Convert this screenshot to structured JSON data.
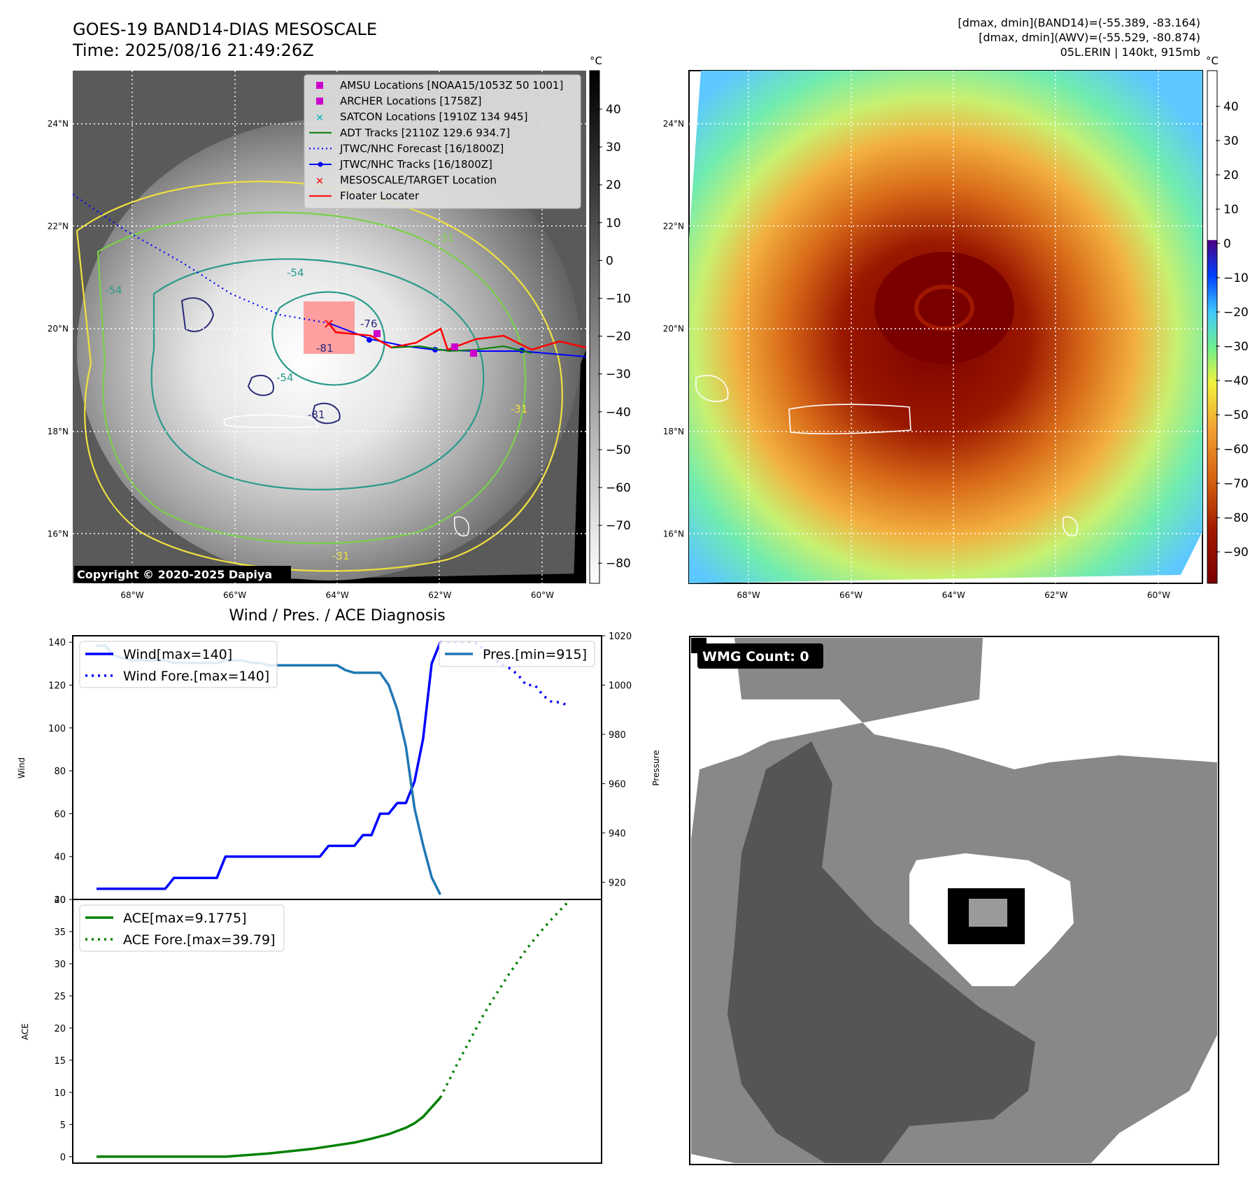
{
  "header": {
    "title_line1": "GOES-19 BAND14-DIAS MESOSCALE",
    "title_line2": "Time: 2025/08/16 21:49:26Z",
    "info_line1": "[dmax, dmin](BAND14)=(-55.389, -83.164)",
    "info_line2": "[dmax, dmin](AWV)=(-55.529, -80.874)",
    "info_line3": "05L.ERIN | 140kt, 915mb"
  },
  "map_left": {
    "copyright": "Copyright © 2020-2025 Dapiya",
    "legend": [
      {
        "label": "AMSU Locations [NOAA15/1053Z 50 1001]",
        "marker": "square",
        "color": "#cc00cc"
      },
      {
        "label": "ARCHER Locations [1758Z]",
        "marker": "square",
        "color": "#cc00cc"
      },
      {
        "label": "SATCON Locations [1910Z 134 945]",
        "marker": "x",
        "color": "#00bbbb"
      },
      {
        "label": "ADT Tracks [2110Z 129.6 934.7]",
        "marker": "line",
        "color": "#008000"
      },
      {
        "label": "JTWC/NHC Forecast [16/1800Z]",
        "marker": "dotted",
        "color": "#0000ff"
      },
      {
        "label": "JTWC/NHC Tracks [16/1800Z]",
        "marker": "line-dot",
        "color": "#0000ff"
      },
      {
        "label": "MESOSCALE/TARGET Location",
        "marker": "x",
        "color": "#ff0000"
      },
      {
        "label": "Floater Locater",
        "marker": "line",
        "color": "#ff0000"
      }
    ],
    "contour_labels": [
      "-54",
      "-54",
      "-31",
      "-31",
      "-76",
      "-81",
      "-81",
      "-54",
      "-31"
    ],
    "colorbar_unit": "°C",
    "colorbar_ticks": [
      "40",
      "30",
      "20",
      "10",
      "0",
      "−10",
      "−20",
      "−30",
      "−40",
      "−50",
      "−60",
      "−70",
      "−80"
    ],
    "lat_ticks": [
      "24°N",
      "22°N",
      "20°N",
      "18°N",
      "16°N"
    ],
    "lon_ticks": [
      "68°W",
      "66°W",
      "64°W",
      "62°W",
      "60°W"
    ]
  },
  "map_right": {
    "colorbar_unit": "°C",
    "colorbar_ticks": [
      "40",
      "30",
      "20",
      "10",
      "0",
      "−10",
      "−20",
      "−30",
      "−40",
      "−50",
      "−60",
      "−70",
      "−80",
      "−90"
    ],
    "lat_ticks": [
      "24°N",
      "22°N",
      "20°N",
      "18°N",
      "16°N"
    ],
    "lon_ticks": [
      "68°W",
      "66°W",
      "64°W",
      "62°W",
      "60°W"
    ]
  },
  "wmg": {
    "label": "WMG Count: 0"
  },
  "colors": {
    "wind": "#0000ff",
    "pressure": "#1f77b4",
    "ace": "#008000",
    "copyright_bg": "#000000"
  },
  "chart_data": [
    {
      "type": "line",
      "title": "Wind / Pres. / ACE Diagnosis",
      "xlabel": "",
      "ylabel": "Wind",
      "ylabel_right": "Pressure",
      "ylim": [
        20,
        143
      ],
      "ylim_right": [
        913,
        1020
      ],
      "yticks": [
        "20",
        "40",
        "60",
        "80",
        "100",
        "120",
        "140"
      ],
      "yticks_right": [
        "920",
        "940",
        "960",
        "980",
        "1000",
        "1020"
      ],
      "x": [
        0,
        1,
        2,
        3,
        4,
        5,
        6,
        7,
        8,
        9,
        10,
        11,
        12,
        13,
        14,
        15,
        16,
        17,
        18,
        19,
        20,
        21,
        22,
        23,
        24,
        25,
        26,
        27,
        28,
        29,
        30,
        31,
        32,
        33,
        34,
        35,
        36,
        37,
        38,
        39,
        40,
        41,
        42,
        43,
        44,
        45,
        46,
        47,
        48,
        49,
        50,
        51,
        52,
        53,
        54,
        55
      ],
      "series": [
        {
          "name": "Wind[max=140]",
          "style": "solid",
          "color": "#0000ff",
          "x": [
            0,
            2,
            4,
            6,
            8,
            9,
            10,
            12,
            14,
            15,
            16,
            18,
            20,
            21,
            22,
            24,
            26,
            27,
            28,
            29,
            30,
            31,
            32,
            33,
            34,
            35,
            36,
            37,
            38,
            39,
            40
          ],
          "values": [
            25,
            25,
            25,
            25,
            25,
            30,
            30,
            30,
            30,
            40,
            40,
            40,
            40,
            40,
            40,
            40,
            40,
            45,
            45,
            45,
            45,
            50,
            50,
            60,
            60,
            65,
            65,
            75,
            95,
            130,
            140
          ]
        },
        {
          "name": "Wind Fore.[max=140]",
          "style": "dotted",
          "color": "#0000ff",
          "x": [
            40,
            41,
            42,
            43,
            44,
            45,
            46,
            47,
            48,
            49,
            50,
            51,
            52,
            53,
            54,
            55
          ],
          "values": [
            140,
            140,
            140,
            140,
            140,
            137,
            133,
            130,
            128,
            125,
            120,
            120,
            115,
            112,
            112,
            110
          ]
        },
        {
          "name": "Pres.[min=915]",
          "style": "solid",
          "color": "#1f77b4",
          "axis": "right",
          "x": [
            0,
            1,
            2,
            3,
            4,
            5,
            6,
            7,
            8,
            9,
            10,
            11,
            12,
            13,
            14,
            15,
            16,
            17,
            18,
            19,
            20,
            21,
            22,
            23,
            24,
            25,
            26,
            27,
            28,
            29,
            30,
            31,
            32,
            33,
            34,
            35,
            36,
            37,
            38,
            39,
            40
          ],
          "values": [
            1016,
            1016,
            1012,
            1011,
            1010,
            1010,
            1010,
            1010,
            1010,
            1009,
            1009,
            1009,
            1009,
            1009,
            1009,
            1010,
            1010,
            1010,
            1009,
            1009,
            1008,
            1008,
            1008,
            1008,
            1008,
            1008,
            1008,
            1008,
            1008,
            1006,
            1005,
            1005,
            1005,
            1005,
            1000,
            990,
            975,
            950,
            935,
            922,
            915
          ]
        }
      ]
    },
    {
      "type": "line",
      "title": "",
      "xlabel": "",
      "ylabel": "ACE",
      "ylim": [
        -1,
        40
      ],
      "yticks": [
        "0",
        "5",
        "10",
        "15",
        "20",
        "25",
        "30",
        "35",
        "40"
      ],
      "series": [
        {
          "name": "ACE[max=9.1775]",
          "style": "solid",
          "color": "#008000",
          "x": [
            0,
            5,
            10,
            15,
            20,
            25,
            28,
            30,
            32,
            34,
            36,
            37,
            38,
            40
          ],
          "values": [
            0,
            0,
            0,
            0,
            0.5,
            1.2,
            1.8,
            2.2,
            2.8,
            3.5,
            4.5,
            5.2,
            6.2,
            9.18
          ]
        },
        {
          "name": "ACE Fore.[max=39.79]",
          "style": "dotted",
          "color": "#008000",
          "x": [
            40,
            41,
            42,
            43,
            44,
            45,
            46,
            47,
            48,
            49,
            50,
            51,
            52,
            53,
            54,
            55
          ],
          "values": [
            9.18,
            11.8,
            14.5,
            17.0,
            19.5,
            22.0,
            24.2,
            26.3,
            28.4,
            30.3,
            32.2,
            33.9,
            35.5,
            37.0,
            38.4,
            39.79
          ]
        }
      ]
    }
  ]
}
